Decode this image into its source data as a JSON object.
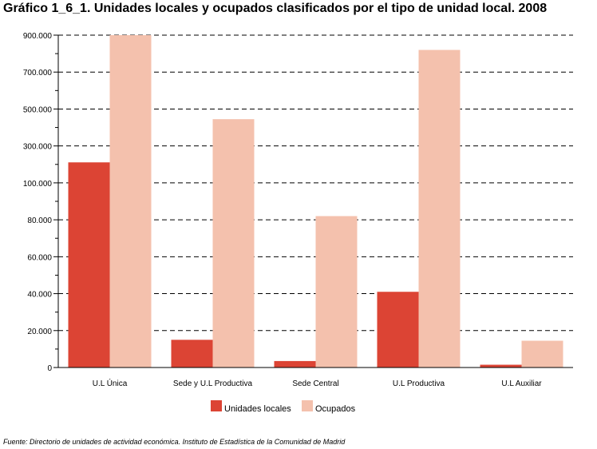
{
  "title": "Gráfico 1_6_1. Unidades locales y ocupados clasificados por el tipo de unidad local. 2008",
  "source": "Fuente: Directorio de unidades de actividad económica. Instituto de Estadística de la Comunidad de Madrid",
  "chart_data": {
    "type": "bar",
    "title": "Gráfico 1_6_1. Unidades locales y ocupados clasificados por el tipo de unidad local. 2008",
    "xlabel": "",
    "ylabel": "",
    "categories": [
      "U.L Única",
      "Sede y U.L Productiva",
      "Sede Central",
      "U.L Productiva",
      "U.L Auxiliar"
    ],
    "axis": {
      "note": "broken axis: linear 0–100.000 in steps of 20.000, then 300.000–900.000 in steps of 200.000",
      "tick_labels": [
        "0",
        "20.000",
        "40.000",
        "60.000",
        "80.000",
        "100.000",
        "300.000",
        "500.000",
        "700.000",
        "900.000"
      ],
      "tick_values": [
        0,
        20000,
        40000,
        60000,
        80000,
        100000,
        300000,
        500000,
        700000,
        900000
      ]
    },
    "ylim": [
      0,
      900000
    ],
    "grid": true,
    "legend_position": "bottom",
    "series": [
      {
        "name": "Unidades locales",
        "color": "#dc4434",
        "values": [
          211000,
          15000,
          3500,
          41000,
          1500
        ]
      },
      {
        "name": "Ocupados",
        "color": "#f4c1ad",
        "values": [
          900000,
          445000,
          82000,
          820000,
          14500
        ]
      }
    ]
  }
}
